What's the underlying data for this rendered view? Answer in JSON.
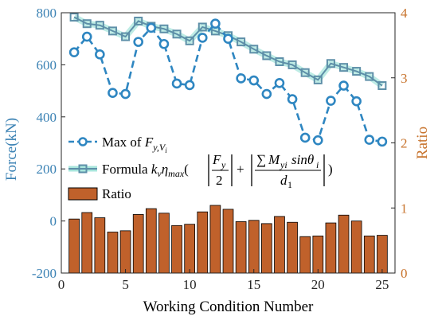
{
  "chart_data": {
    "type": "bar+line",
    "xlabel": "Working Condition Number",
    "ylabel_left": "Force(kN)",
    "ylabel_right": "Ratio",
    "xlim": [
      0,
      26
    ],
    "ylim_left": [
      -200,
      800
    ],
    "ylim_right": [
      0,
      4
    ],
    "x_ticks": [
      0,
      5,
      10,
      15,
      20,
      25
    ],
    "y_left_ticks": [
      -200,
      0,
      200,
      400,
      600,
      800
    ],
    "y_right_ticks": [
      0,
      1,
      2,
      3,
      4
    ],
    "x": [
      1,
      2,
      3,
      4,
      5,
      6,
      7,
      8,
      9,
      10,
      11,
      12,
      13,
      14,
      15,
      16,
      17,
      18,
      19,
      20,
      21,
      22,
      23,
      24,
      25
    ],
    "grid": false,
    "legend_placement": "left-center",
    "series": [
      {
        "name": "Max of F_{y,V_i}",
        "axis": "left",
        "style": "dashed-circle",
        "color": "#2E86C1",
        "values": [
          648,
          708,
          640,
          492,
          488,
          688,
          742,
          680,
          528,
          522,
          704,
          758,
          700,
          548,
          540,
          488,
          530,
          468,
          320,
          310,
          462,
          520,
          460,
          312,
          305
        ]
      },
      {
        "name": "Formula",
        "axis": "left",
        "style": "solid-square",
        "color": "#5D8FA8",
        "values": [
          783,
          758,
          752,
          730,
          708,
          768,
          748,
          738,
          718,
          692,
          745,
          730,
          712,
          688,
          660,
          635,
          612,
          600,
          570,
          542,
          605,
          590,
          575,
          555,
          520
        ]
      },
      {
        "name": "Ratio",
        "axis": "right",
        "style": "bar",
        "color": "#C0612B",
        "values": [
          0.83,
          0.93,
          0.85,
          0.63,
          0.65,
          0.9,
          0.99,
          0.92,
          0.73,
          0.75,
          0.94,
          1.04,
          0.98,
          0.79,
          0.81,
          0.76,
          0.87,
          0.78,
          0.56,
          0.57,
          0.77,
          0.89,
          0.8,
          0.57,
          0.58
        ]
      }
    ],
    "colors": {
      "left_axis": "#3B82B4",
      "right_axis": "#C8742E",
      "bar_fill": "#C0612B",
      "bar_edge": "#000000",
      "line1": "#2E86C1",
      "line2": "#5D8FA8",
      "line2_glow": "#A8E6DC"
    }
  }
}
